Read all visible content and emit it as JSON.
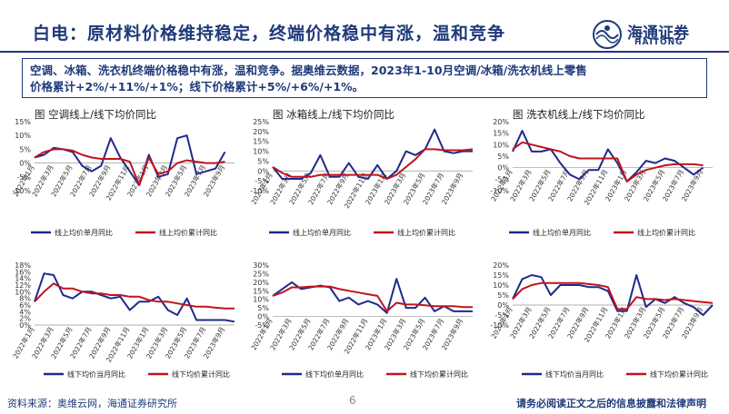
{
  "header": {
    "title": "白电：原材料价格维持稳定，终端价格稳中有涨，温和竞争",
    "brand_cn": "海通证券",
    "brand_en": "HAITONG"
  },
  "summary": {
    "line1": "空调、冰箱、洗衣机终端价格稳中有涨，温和竞争。据奥维云数据，2023年1-10月空调/冰箱/洗衣机线上零售",
    "line2": "价格累计+2%/+11%/+1%；线下价格累计+5%/+6%/+1%。"
  },
  "footer": {
    "source": "资料来源：奥维云网，海通证券研究所",
    "page": "6",
    "disclaimer": "请务必阅读正文之后的信息披露和法律声明"
  },
  "colors": {
    "monthly": "#1f2a8a",
    "cumulative": "#c0141c",
    "accent": "#1f3a7a"
  },
  "chart_data": [
    {
      "type": "line",
      "title": "图 空调线上/线下均价同比",
      "x": [
        "2022年1月",
        "2022年2月",
        "2022年3月",
        "2022年4月",
        "2022年5月",
        "2022年6月",
        "2022年7月",
        "2022年8月",
        "2022年9月",
        "2022年10月",
        "2022年11月",
        "2022年12月",
        "2023年1月",
        "2023年2月",
        "2023年3月",
        "2023年4月",
        "2023年5月",
        "2023年6月",
        "2023年7月",
        "2023年8月",
        "2023年9月",
        "2023年10月"
      ],
      "ticks": [
        "2022年1月",
        "2022年3月",
        "2022年5月",
        "2022年7月",
        "2022年9月",
        "2022年11月",
        "2023年1月",
        "2023年3月",
        "2023年5月",
        "2023年7月",
        "2023年9月"
      ],
      "ylim": [
        -10,
        15
      ],
      "yticks": [
        -10,
        -5,
        0,
        5,
        10,
        15
      ],
      "series": [
        {
          "name": "线上均价单月同比",
          "values": [
            2,
            3,
            5.5,
            5,
            4,
            -1,
            -3,
            -1,
            9,
            2,
            -3,
            -8,
            3,
            -5,
            -4,
            9,
            10,
            -4,
            -3,
            -2,
            4,
            null
          ]
        },
        {
          "name": "线上均价累计同比",
          "values": [
            2,
            4,
            5,
            5,
            4.5,
            3,
            2,
            1.5,
            1.5,
            1.5,
            0.5,
            -8,
            2,
            -4,
            -3,
            0,
            1,
            0.5,
            0,
            0,
            0.5,
            null
          ]
        }
      ]
    },
    {
      "type": "line",
      "title": "图 冰箱线上/线下均价同比",
      "x": [
        "2022年1月",
        "2022年2月",
        "2022年3月",
        "2022年4月",
        "2022年5月",
        "2022年6月",
        "2022年7月",
        "2022年8月",
        "2022年9月",
        "2022年10月",
        "2022年11月",
        "2022年12月",
        "2023年1月",
        "2023年2月",
        "2023年3月",
        "2023年4月",
        "2023年5月",
        "2023年6月",
        "2023年7月",
        "2023年8月",
        "2023年9月",
        "2023年10月"
      ],
      "ticks": [
        "2022年1月",
        "2022年3月",
        "2022年5月",
        "2022年7月",
        "2022年9月",
        "2022年11月",
        "2023年1月",
        "2023年3月",
        "2023年5月",
        "2023年7月",
        "2023年9月"
      ],
      "ylim": [
        -10,
        25
      ],
      "yticks": [
        -10,
        -5,
        0,
        5,
        10,
        15,
        20,
        25
      ],
      "series": [
        {
          "name": "线上均价单月同比",
          "values": [
            2,
            -4,
            -4,
            -4,
            -1,
            8,
            -3,
            -3,
            4,
            -3,
            -4,
            3,
            -4,
            0,
            10,
            8,
            11,
            21,
            10,
            9,
            10,
            10
          ]
        },
        {
          "name": "线上均价累计同比",
          "values": [
            2,
            -1,
            -3,
            -3,
            -3,
            -2,
            -2,
            -2,
            -2,
            -2,
            -2,
            -2,
            -4,
            -2,
            2,
            6,
            11,
            11,
            10.5,
            10.5,
            10.5,
            11
          ]
        }
      ]
    },
    {
      "type": "line",
      "title": "图 洗衣机线上/线下均价同比",
      "x": [
        "2022年1月",
        "2022年2月",
        "2022年3月",
        "2022年4月",
        "2022年5月",
        "2022年6月",
        "2022年7月",
        "2022年8月",
        "2022年9月",
        "2022年10月",
        "2022年11月",
        "2022年12月",
        "2023年1月",
        "2023年2月",
        "2023年3月",
        "2023年4月",
        "2023年5月",
        "2023年6月",
        "2023年7月",
        "2023年8月",
        "2023年9月",
        "2023年10月"
      ],
      "ticks": [
        "2022年1月",
        "2022年3月",
        "2022年5月",
        "2022年7月",
        "2022年9月",
        "2022年11月",
        "2023年1月",
        "2023年3月",
        "2023年5月",
        "2023年7月",
        "2023年9月"
      ],
      "ylim": [
        -10,
        20
      ],
      "yticks": [
        -10,
        -5,
        0,
        5,
        10,
        15,
        20
      ],
      "series": [
        {
          "name": "线上均价单月同比",
          "values": [
            7,
            16,
            7,
            7,
            8,
            2,
            -3,
            -5,
            -1,
            -1,
            8,
            2,
            -6,
            -2,
            3,
            2,
            4,
            3,
            0,
            -3,
            0,
            null
          ]
        },
        {
          "name": "线上均价累计同比",
          "values": [
            8,
            11,
            10,
            9,
            8,
            7,
            5,
            4,
            4,
            4,
            4,
            4,
            -6,
            -3,
            -1,
            0,
            1,
            1.5,
            1.5,
            1.5,
            1,
            null
          ]
        }
      ]
    },
    {
      "type": "line",
      "title": "",
      "x": [
        "2022年1月",
        "2022年2月",
        "2022年3月",
        "2022年4月",
        "2022年5月",
        "2022年6月",
        "2022年7月",
        "2022年8月",
        "2022年9月",
        "2022年10月",
        "2022年11月",
        "2022年12月",
        "2023年1月",
        "2023年2月",
        "2023年3月",
        "2023年4月",
        "2023年5月",
        "2023年6月",
        "2023年7月",
        "2023年8月",
        "2023年9月",
        "2023年10月"
      ],
      "ticks": [
        "2022年1月",
        "2022年3月",
        "2022年5月",
        "2022年7月",
        "2022年9月",
        "2022年11月",
        "2023年1月",
        "2023年3月",
        "2023年5月",
        "2023年7月",
        "2023年9月"
      ],
      "ylim": [
        0,
        18
      ],
      "yticks": [
        0,
        2,
        4,
        6,
        8,
        10,
        12,
        14,
        16,
        18
      ],
      "series": [
        {
          "name": "线下均价当月同比",
          "values": [
            7,
            15.5,
            15,
            9,
            8,
            10,
            10,
            9,
            8,
            8.5,
            4.5,
            7,
            7,
            8.5,
            4.5,
            3,
            8,
            1.5,
            1.5,
            1.5,
            1.5,
            1
          ]
        },
        {
          "name": "线下均价累计同比",
          "values": [
            7,
            10,
            12.5,
            11,
            11,
            10,
            9.5,
            9.5,
            9,
            9,
            8.5,
            8.5,
            7.5,
            7,
            7,
            6.5,
            6,
            5.5,
            5.5,
            5.2,
            5,
            5
          ]
        }
      ]
    },
    {
      "type": "line",
      "title": "",
      "x": [
        "2022年1月",
        "2022年2月",
        "2022年3月",
        "2022年4月",
        "2022年5月",
        "2022年6月",
        "2022年7月",
        "2022年8月",
        "2022年9月",
        "2022年10月",
        "2022年11月",
        "2022年12月",
        "2023年1月",
        "2023年2月",
        "2023年3月",
        "2023年4月",
        "2023年5月",
        "2023年6月",
        "2023年7月",
        "2023年8月",
        "2023年9月",
        "2023年10月"
      ],
      "ticks": [
        "2022年1月",
        "2022年3月",
        "2022年5月",
        "2022年7月",
        "2022年9月",
        "2022年11月",
        "2023年1月",
        "2023年3月",
        "2023年5月",
        "2023年7月",
        "2023年9月"
      ],
      "ylim": [
        -5,
        30
      ],
      "yticks": [
        -5,
        0,
        5,
        10,
        15,
        20,
        25,
        30
      ],
      "series": [
        {
          "name": "线下均价单月同比",
          "values": [
            12,
            16,
            20,
            16,
            17,
            18,
            17,
            9,
            11,
            7,
            9,
            7,
            2,
            22,
            5,
            5,
            11,
            3,
            6,
            3,
            3,
            3
          ]
        },
        {
          "name": "线下均价累计同比",
          "values": [
            12,
            14,
            17,
            17,
            17.5,
            17.5,
            17.5,
            16,
            15,
            14,
            13,
            12,
            3,
            8,
            7,
            7,
            6.5,
            6,
            6,
            6,
            5.5,
            5.5
          ]
        }
      ]
    },
    {
      "type": "line",
      "title": "",
      "x": [
        "2022年1月",
        "2022年2月",
        "2022年3月",
        "2022年4月",
        "2022年5月",
        "2022年6月",
        "2022年7月",
        "2022年8月",
        "2022年9月",
        "2022年10月",
        "2022年11月",
        "2022年12月",
        "2023年1月",
        "2023年2月",
        "2023年3月",
        "2023年4月",
        "2023年5月",
        "2023年6月",
        "2023年7月",
        "2023年8月",
        "2023年9月",
        "2023年10月"
      ],
      "ticks": [
        "2022年1月",
        "2022年3月",
        "2022年5月",
        "2022年7月",
        "2022年9月",
        "2022年11月",
        "2023年1月",
        "2023年3月",
        "2023年5月",
        "2023年7月",
        "2023年9月"
      ],
      "ylim": [
        -10,
        20
      ],
      "yticks": [
        -10,
        -5,
        0,
        5,
        10,
        15,
        20
      ],
      "series": [
        {
          "name": "线下均价当月同比",
          "values": [
            3,
            13,
            15,
            14,
            5,
            10,
            10,
            10,
            9,
            9,
            7,
            -3,
            -3,
            15,
            -1,
            3,
            1,
            4,
            1,
            -1,
            -5,
            0
          ]
        },
        {
          "name": "线下均价累计同比",
          "values": [
            3,
            8,
            10,
            11,
            11,
            11,
            11,
            11,
            10.5,
            10,
            9,
            -2,
            -2,
            4,
            3,
            3,
            2.5,
            3,
            2.5,
            2,
            1.5,
            1
          ]
        }
      ]
    }
  ]
}
